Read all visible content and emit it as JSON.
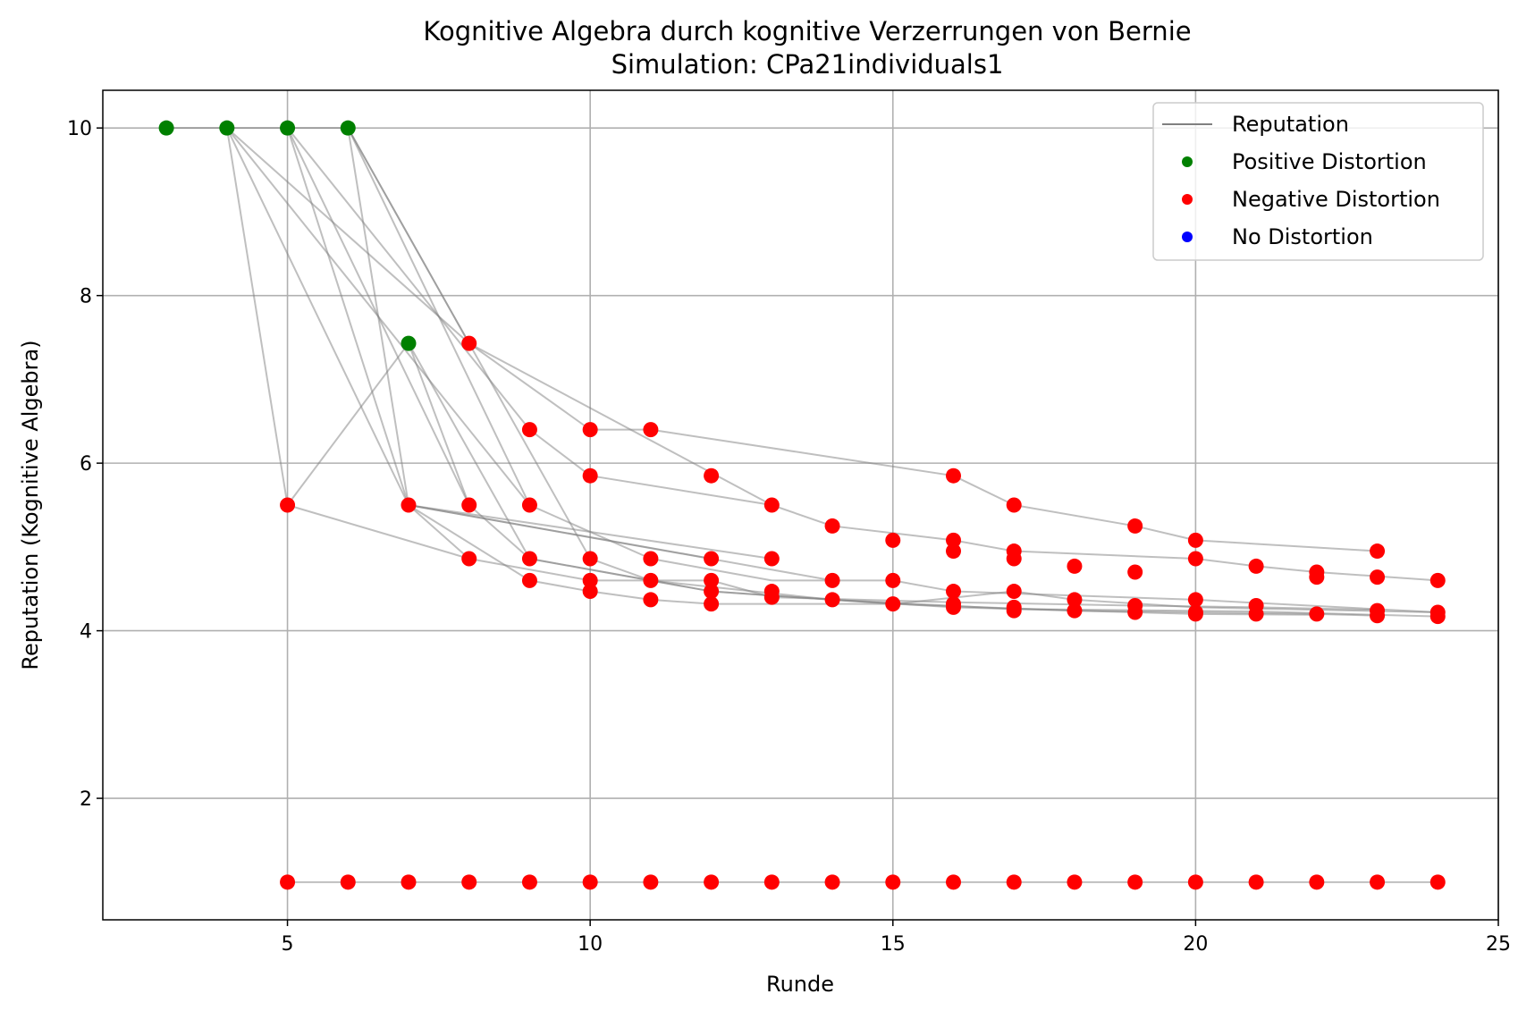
{
  "chart_data": {
    "type": "scatter",
    "title": "Kognitive Algebra durch kognitive Verzerrungen von Bernie",
    "subtitle": "Simulation: CPa21individuals1",
    "xlabel": "Runde",
    "ylabel": "Reputation (Kognitive Algebra)",
    "xlim": [
      1.95,
      25.0
    ],
    "ylim": [
      0.55,
      10.45
    ],
    "xticks": [
      5,
      10,
      15,
      20,
      25
    ],
    "yticks": [
      2,
      4,
      6,
      8,
      10
    ],
    "grid": true,
    "legend_position": "top-right",
    "colors": {
      "Reputation": "#808080",
      "Positive Distortion": "#008000",
      "Negative Distortion": "#ff0000",
      "No Distortion": "#0000ff"
    },
    "legend": [
      "Reputation",
      "Positive Distortion",
      "Negative Distortion",
      "No Distortion"
    ],
    "line_segments": [
      [
        [
          3,
          10
        ],
        [
          4,
          10
        ]
      ],
      [
        [
          4,
          10
        ],
        [
          5,
          10
        ]
      ],
      [
        [
          5,
          10
        ],
        [
          6,
          10
        ]
      ],
      [
        [
          4,
          10
        ],
        [
          5,
          5.5
        ]
      ],
      [
        [
          4,
          10
        ],
        [
          7,
          5.5
        ]
      ],
      [
        [
          4,
          10
        ],
        [
          8,
          7.43
        ]
      ],
      [
        [
          4,
          10
        ],
        [
          9,
          5.5
        ]
      ],
      [
        [
          5,
          10
        ],
        [
          7,
          5.5
        ]
      ],
      [
        [
          5,
          10
        ],
        [
          8,
          5.5
        ]
      ],
      [
        [
          5,
          10
        ],
        [
          9,
          6.4
        ]
      ],
      [
        [
          6,
          10
        ],
        [
          7,
          5.5
        ]
      ],
      [
        [
          6,
          10
        ],
        [
          8,
          7.43
        ]
      ],
      [
        [
          6,
          10
        ],
        [
          9,
          5.5
        ]
      ],
      [
        [
          6,
          10
        ],
        [
          10,
          4.86
        ]
      ],
      [
        [
          5,
          5.5
        ],
        [
          7,
          7.43
        ]
      ],
      [
        [
          7,
          7.43
        ],
        [
          8,
          5.5
        ]
      ],
      [
        [
          7,
          7.43
        ],
        [
          9,
          4.86
        ]
      ],
      [
        [
          5,
          5.5
        ],
        [
          8,
          4.86
        ]
      ],
      [
        [
          8,
          4.86
        ],
        [
          10,
          4.6
        ]
      ],
      [
        [
          7,
          5.5
        ],
        [
          8,
          4.86
        ]
      ],
      [
        [
          7,
          5.5
        ],
        [
          9,
          4.6
        ]
      ],
      [
        [
          7,
          5.5
        ],
        [
          12,
          4.86
        ]
      ],
      [
        [
          7,
          5.5
        ],
        [
          13,
          4.86
        ]
      ],
      [
        [
          7,
          5.5
        ],
        [
          14,
          4.6
        ]
      ],
      [
        [
          8,
          7.43
        ],
        [
          10,
          6.4
        ]
      ],
      [
        [
          8,
          7.43
        ],
        [
          13,
          5.5
        ]
      ],
      [
        [
          10,
          6.4
        ],
        [
          11,
          6.4
        ]
      ],
      [
        [
          11,
          6.4
        ],
        [
          16,
          5.85
        ]
      ],
      [
        [
          16,
          5.85
        ],
        [
          17,
          5.5
        ]
      ],
      [
        [
          17,
          5.5
        ],
        [
          19,
          5.25
        ]
      ],
      [
        [
          19,
          5.25
        ],
        [
          20,
          5.08
        ]
      ],
      [
        [
          20,
          5.08
        ],
        [
          23,
          4.95
        ]
      ],
      [
        [
          9,
          6.4
        ],
        [
          10,
          5.85
        ]
      ],
      [
        [
          10,
          5.85
        ],
        [
          13,
          5.5
        ]
      ],
      [
        [
          13,
          5.5
        ],
        [
          14,
          5.25
        ]
      ],
      [
        [
          14,
          5.25
        ],
        [
          16,
          5.08
        ]
      ],
      [
        [
          16,
          5.08
        ],
        [
          17,
          4.95
        ]
      ],
      [
        [
          17,
          4.95
        ],
        [
          20,
          4.86
        ]
      ],
      [
        [
          20,
          4.86
        ],
        [
          21,
          4.77
        ]
      ],
      [
        [
          21,
          4.77
        ],
        [
          22,
          4.7
        ]
      ],
      [
        [
          22,
          4.7
        ],
        [
          24,
          4.6
        ]
      ],
      [
        [
          9,
          5.5
        ],
        [
          11,
          4.86
        ]
      ],
      [
        [
          11,
          4.86
        ],
        [
          13,
          4.6
        ]
      ],
      [
        [
          13,
          4.6
        ],
        [
          15,
          4.6
        ]
      ],
      [
        [
          15,
          4.6
        ],
        [
          16,
          4.47
        ]
      ],
      [
        [
          16,
          4.47
        ],
        [
          20,
          4.37
        ]
      ],
      [
        [
          20,
          4.37
        ],
        [
          24,
          4.22
        ]
      ],
      [
        [
          8,
          5.5
        ],
        [
          9,
          4.86
        ]
      ],
      [
        [
          9,
          4.86
        ],
        [
          12,
          4.47
        ]
      ],
      [
        [
          12,
          4.47
        ],
        [
          14,
          4.37
        ]
      ],
      [
        [
          14,
          4.37
        ],
        [
          17,
          4.26
        ]
      ],
      [
        [
          17,
          4.26
        ],
        [
          21,
          4.23
        ]
      ],
      [
        [
          21,
          4.23
        ],
        [
          24,
          4.17
        ]
      ],
      [
        [
          9,
          4.6
        ],
        [
          10,
          4.47
        ]
      ],
      [
        [
          10,
          4.47
        ],
        [
          11,
          4.37
        ]
      ],
      [
        [
          11,
          4.37
        ],
        [
          12,
          4.32
        ]
      ],
      [
        [
          12,
          4.32
        ],
        [
          15,
          4.32
        ]
      ],
      [
        [
          15,
          4.32
        ],
        [
          18,
          4.24
        ]
      ],
      [
        [
          18,
          4.24
        ],
        [
          22,
          4.2
        ]
      ],
      [
        [
          22,
          4.2
        ],
        [
          23,
          4.18
        ]
      ],
      [
        [
          10,
          4.6
        ],
        [
          12,
          4.6
        ]
      ],
      [
        [
          12,
          4.6
        ],
        [
          13,
          4.4
        ]
      ],
      [
        [
          13,
          4.4
        ],
        [
          16,
          4.34
        ]
      ],
      [
        [
          16,
          4.34
        ],
        [
          19,
          4.3
        ]
      ],
      [
        [
          19,
          4.3
        ],
        [
          21,
          4.28
        ]
      ],
      [
        [
          21,
          4.28
        ],
        [
          23,
          4.25
        ]
      ],
      [
        [
          10,
          4.86
        ],
        [
          11,
          4.6
        ]
      ],
      [
        [
          11,
          4.6
        ],
        [
          14,
          4.37
        ]
      ],
      [
        [
          14,
          4.37
        ],
        [
          16,
          4.28
        ]
      ],
      [
        [
          16,
          4.28
        ],
        [
          19,
          4.22
        ]
      ],
      [
        [
          19,
          4.22
        ],
        [
          20,
          4.2
        ]
      ],
      [
        [
          20,
          4.2
        ],
        [
          22,
          4.19
        ]
      ],
      [
        [
          9,
          4.86
        ],
        [
          12,
          4.47
        ]
      ],
      [
        [
          12,
          4.47
        ],
        [
          15,
          4.32
        ]
      ],
      [
        [
          15,
          4.32
        ],
        [
          17,
          4.47
        ]
      ],
      [
        [
          17,
          4.47
        ],
        [
          18,
          4.37
        ]
      ],
      [
        [
          18,
          4.37
        ],
        [
          20,
          4.28
        ]
      ],
      [
        [
          20,
          4.28
        ],
        [
          24,
          4.22
        ]
      ],
      [
        [
          5,
          1
        ],
        [
          24,
          1
        ]
      ]
    ],
    "positive_points": [
      [
        3,
        10
      ],
      [
        4,
        10
      ],
      [
        5,
        10
      ],
      [
        6,
        10
      ],
      [
        7,
        7.43
      ]
    ],
    "negative_points": [
      [
        5,
        5.5
      ],
      [
        7,
        5.5
      ],
      [
        8,
        7.43
      ],
      [
        8,
        5.5
      ],
      [
        8,
        4.86
      ],
      [
        9,
        6.4
      ],
      [
        9,
        5.5
      ],
      [
        9,
        4.86
      ],
      [
        9,
        4.6
      ],
      [
        10,
        6.4
      ],
      [
        10,
        5.85
      ],
      [
        10,
        4.86
      ],
      [
        10,
        4.6
      ],
      [
        10,
        4.47
      ],
      [
        11,
        6.4
      ],
      [
        11,
        4.86
      ],
      [
        11,
        4.6
      ],
      [
        11,
        4.37
      ],
      [
        12,
        5.85
      ],
      [
        12,
        4.86
      ],
      [
        12,
        4.6
      ],
      [
        12,
        4.47
      ],
      [
        12,
        4.32
      ],
      [
        13,
        5.5
      ],
      [
        13,
        4.86
      ],
      [
        13,
        4.47
      ],
      [
        13,
        4.4
      ],
      [
        14,
        5.25
      ],
      [
        14,
        4.6
      ],
      [
        14,
        4.37
      ],
      [
        15,
        5.08
      ],
      [
        15,
        4.6
      ],
      [
        15,
        4.32
      ],
      [
        16,
        5.85
      ],
      [
        16,
        5.08
      ],
      [
        16,
        4.95
      ],
      [
        16,
        4.47
      ],
      [
        16,
        4.32
      ],
      [
        16,
        4.28
      ],
      [
        17,
        5.5
      ],
      [
        17,
        4.95
      ],
      [
        17,
        4.86
      ],
      [
        17,
        4.47
      ],
      [
        17,
        4.28
      ],
      [
        17,
        4.24
      ],
      [
        18,
        4.77
      ],
      [
        18,
        4.37
      ],
      [
        18,
        4.24
      ],
      [
        19,
        5.25
      ],
      [
        19,
        4.7
      ],
      [
        19,
        4.3
      ],
      [
        19,
        4.22
      ],
      [
        20,
        5.08
      ],
      [
        20,
        4.86
      ],
      [
        20,
        4.37
      ],
      [
        20,
        4.22
      ],
      [
        20,
        4.2
      ],
      [
        21,
        4.77
      ],
      [
        21,
        4.3
      ],
      [
        21,
        4.2
      ],
      [
        22,
        4.7
      ],
      [
        22,
        4.64
      ],
      [
        22,
        4.2
      ],
      [
        23,
        4.95
      ],
      [
        23,
        4.64
      ],
      [
        23,
        4.24
      ],
      [
        23,
        4.18
      ],
      [
        24,
        4.6
      ],
      [
        24,
        4.22
      ],
      [
        24,
        4.17
      ],
      [
        5,
        1
      ],
      [
        6,
        1
      ],
      [
        7,
        1
      ],
      [
        8,
        1
      ],
      [
        9,
        1
      ],
      [
        10,
        1
      ],
      [
        11,
        1
      ],
      [
        12,
        1
      ],
      [
        13,
        1
      ],
      [
        14,
        1
      ],
      [
        15,
        1
      ],
      [
        16,
        1
      ],
      [
        17,
        1
      ],
      [
        18,
        1
      ],
      [
        19,
        1
      ],
      [
        20,
        1
      ],
      [
        21,
        1
      ],
      [
        22,
        1
      ],
      [
        23,
        1
      ],
      [
        24,
        1
      ]
    ],
    "none_points": []
  }
}
